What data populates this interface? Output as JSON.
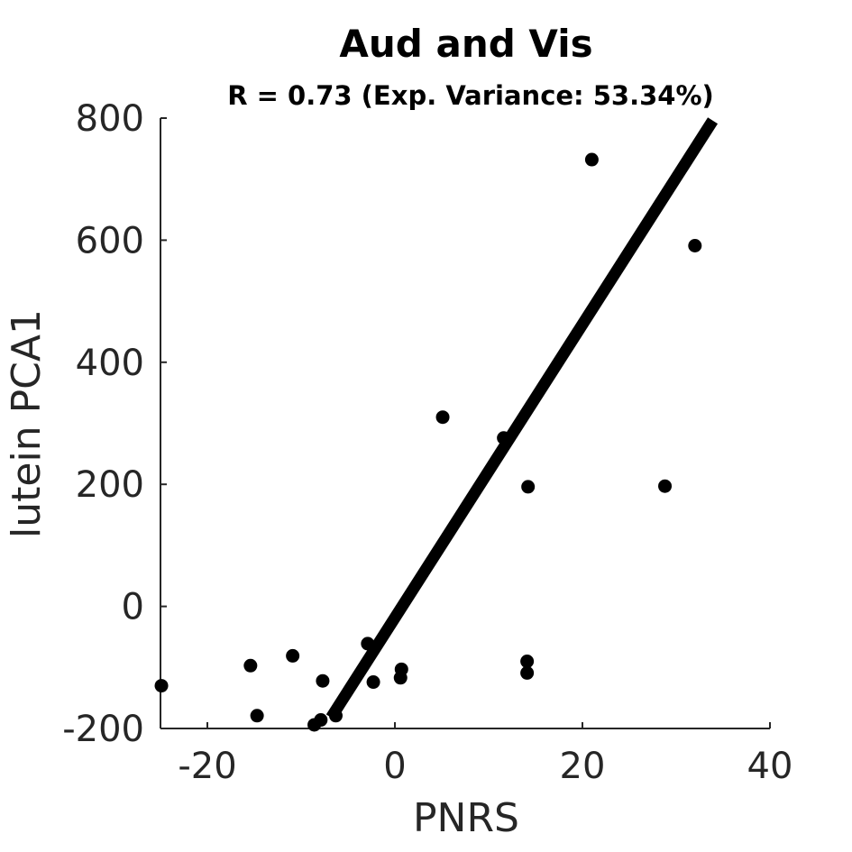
{
  "chart_data": {
    "type": "scatter",
    "title": "Aud and Vis",
    "subtitle": "R = 0.73 (Exp. Variance: 53.34%)",
    "xlabel": "PNRS",
    "ylabel": "lutein PCA1",
    "xlim": [
      -25,
      40
    ],
    "ylim": [
      -200,
      800
    ],
    "xticks": [
      -20,
      0,
      20,
      40
    ],
    "yticks": [
      -200,
      0,
      200,
      400,
      600,
      800
    ],
    "xtick_labels": [
      "-20",
      "0",
      "20",
      "40"
    ],
    "ytick_labels": [
      "-200",
      "0",
      "200",
      "400",
      "600",
      "800"
    ],
    "grid": false,
    "points": [
      {
        "x": 21.0,
        "y": 732
      },
      {
        "x": 32.0,
        "y": 591
      },
      {
        "x": 5.1,
        "y": 310
      },
      {
        "x": 11.6,
        "y": 276
      },
      {
        "x": 14.2,
        "y": 196
      },
      {
        "x": 28.8,
        "y": 197
      },
      {
        "x": -2.9,
        "y": -61
      },
      {
        "x": 0.7,
        "y": -103
      },
      {
        "x": 0.6,
        "y": -117
      },
      {
        "x": -2.3,
        "y": -124
      },
      {
        "x": 14.1,
        "y": -90
      },
      {
        "x": 14.1,
        "y": -109
      },
      {
        "x": -10.9,
        "y": -81
      },
      {
        "x": -15.4,
        "y": -97
      },
      {
        "x": -7.7,
        "y": -122
      },
      {
        "x": -24.9,
        "y": -130
      },
      {
        "x": -14.7,
        "y": -179
      },
      {
        "x": -6.3,
        "y": -179
      },
      {
        "x": -7.9,
        "y": -186
      },
      {
        "x": -8.6,
        "y": -194
      }
    ],
    "fit_line": {
      "x": [
        -6.8,
        33.9
      ],
      "y": [
        -182,
        796
      ]
    }
  }
}
